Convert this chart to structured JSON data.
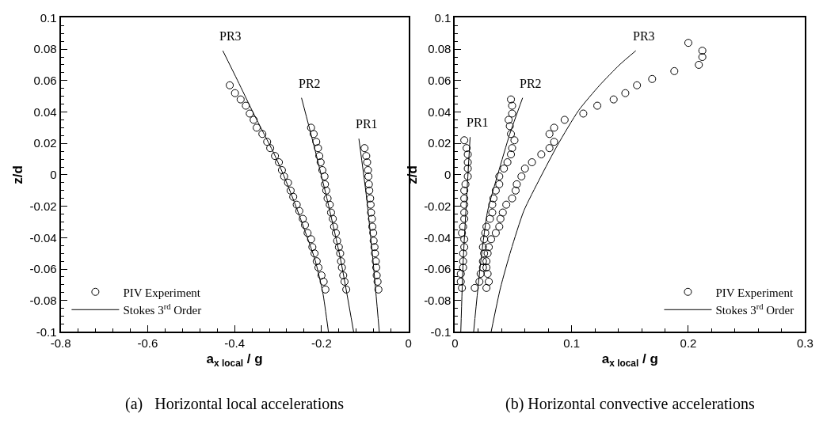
{
  "chart_data": [
    {
      "type": "scatter",
      "title": "(a)   Horizontal local accelerations",
      "xlabel": "a$_{x local}$ / g",
      "ylabel": "z/d",
      "xlim": [
        -0.8,
        0
      ],
      "xticks": [
        -0.8,
        -0.6,
        -0.4,
        -0.2,
        0
      ],
      "ylim": [
        -0.1,
        0.1
      ],
      "yticks": [
        -0.1,
        -0.08,
        -0.06,
        -0.04,
        -0.02,
        0,
        0.02,
        0.04,
        0.06,
        0.08,
        0.1
      ],
      "legend": "bottom left",
      "series": [
        {
          "name": "PIV Experiment",
          "color": "#000000",
          "marker": "circle",
          "x": [
            -0.411,
            -0.399,
            -0.386,
            -0.374,
            -0.365,
            -0.356,
            -0.349,
            -0.336,
            -0.325,
            -0.318,
            -0.307,
            -0.298,
            -0.291,
            -0.286,
            -0.277,
            -0.271,
            -0.265,
            -0.257,
            -0.251,
            -0.243,
            -0.238,
            -0.232,
            -0.224,
            -0.221,
            -0.216,
            -0.211,
            -0.207,
            -0.2,
            -0.195,
            -0.191
          ],
          "values": [
            0.057,
            0.052,
            0.048,
            0.044,
            0.039,
            0.035,
            0.03,
            0.026,
            0.021,
            0.017,
            0.012,
            0.008,
            0.003,
            -0.001,
            -0.005,
            -0.01,
            -0.014,
            -0.019,
            -0.023,
            -0.028,
            -0.032,
            -0.037,
            -0.041,
            -0.046,
            -0.05,
            -0.055,
            -0.059,
            -0.064,
            -0.068,
            -0.073
          ]
        },
        {
          "color": "#000000",
          "marker": "circle",
          "x": [
            -0.224,
            -0.218,
            -0.212,
            -0.208,
            -0.205,
            -0.202,
            -0.198,
            -0.193,
            -0.192,
            -0.189,
            -0.186,
            -0.181,
            -0.178,
            -0.174,
            -0.171,
            -0.167,
            -0.164,
            -0.16,
            -0.157,
            -0.155,
            -0.153,
            -0.15,
            -0.147,
            -0.143
          ],
          "values": [
            0.03,
            0.026,
            0.021,
            0.017,
            0.012,
            0.008,
            0.003,
            -0.001,
            -0.006,
            -0.01,
            -0.015,
            -0.019,
            -0.024,
            -0.028,
            -0.033,
            -0.037,
            -0.042,
            -0.046,
            -0.05,
            -0.055,
            -0.059,
            -0.064,
            -0.068,
            -0.073
          ]
        },
        {
          "color": "#000000",
          "marker": "circle",
          "x": [
            -0.101,
            -0.097,
            -0.095,
            -0.093,
            -0.092,
            -0.091,
            -0.09,
            -0.088,
            -0.087,
            -0.086,
            -0.084,
            -0.083,
            -0.081,
            -0.08,
            -0.078,
            -0.077,
            -0.075,
            -0.074,
            -0.073,
            -0.071,
            -0.069
          ],
          "values": [
            0.017,
            0.012,
            0.008,
            0.003,
            -0.001,
            -0.006,
            -0.01,
            -0.015,
            -0.019,
            -0.024,
            -0.028,
            -0.033,
            -0.037,
            -0.042,
            -0.046,
            -0.05,
            -0.055,
            -0.059,
            -0.064,
            -0.068,
            -0.073
          ]
        },
        {
          "type": "line",
          "name": "Stokes 3$^{rd}$ Order",
          "color": "#000000",
          "marker": "none",
          "line_style": "solid",
          "x": [
            -0.427,
            -0.393,
            -0.358,
            -0.334,
            -0.31,
            -0.286,
            -0.263,
            -0.239,
            -0.215,
            -0.197,
            -0.184
          ],
          "values": [
            0.079,
            0.06,
            0.04,
            0.027,
            0.014,
            -0.001,
            -0.017,
            -0.035,
            -0.054,
            -0.075,
            -0.1
          ]
        },
        {
          "type": "line",
          "color": "#000000",
          "marker": "none",
          "line_style": "solid",
          "x": [
            -0.246,
            -0.215,
            -0.185,
            -0.156,
            -0.126
          ],
          "values": [
            0.049,
            0.016,
            -0.018,
            -0.054,
            -0.1
          ]
        },
        {
          "type": "line",
          "color": "#000000",
          "marker": "none",
          "line_style": "solid",
          "x": [
            -0.114,
            -0.096,
            -0.081,
            -0.067
          ],
          "values": [
            0.023,
            -0.015,
            -0.056,
            -0.1
          ]
        }
      ],
      "annotations": [
        {
          "text": "PR3",
          "x": -0.427,
          "y": 0.079
        },
        {
          "text": "PR2",
          "x": -0.246,
          "y": 0.049
        },
        {
          "text": "PR1",
          "x": -0.114,
          "y": 0.023
        }
      ]
    },
    {
      "type": "scatter",
      "title": "(b) Horizontal convective accelerations",
      "xlabel": "a$_{x local}$ / g",
      "ylabel": "z/d",
      "xlim": [
        0,
        0.3
      ],
      "xticks": [
        0,
        0.1,
        0.2,
        0.3
      ],
      "ylim": [
        -0.1,
        0.1
      ],
      "yticks": [
        -0.1,
        -0.08,
        -0.06,
        -0.04,
        -0.02,
        0,
        0.02,
        0.04,
        0.06,
        0.08,
        0.1
      ],
      "legend": "bottom right",
      "series": [
        {
          "name": "PIV Experiment",
          "color": "#000000",
          "marker": "circle",
          "x": [
            0.008,
            0.01,
            0.011,
            0.011,
            0.011,
            0.011,
            0.009,
            0.008,
            0.008,
            0.008,
            0.008,
            0.008,
            0.007,
            0.006,
            0.008,
            0.008,
            0.007,
            0.007,
            0.007,
            0.005,
            0.005,
            0.006
          ],
          "values": [
            0.022,
            0.017,
            0.013,
            0.008,
            0.004,
            -0.001,
            -0.006,
            -0.01,
            -0.015,
            -0.019,
            -0.024,
            -0.028,
            -0.033,
            -0.037,
            -0.041,
            -0.046,
            -0.05,
            -0.055,
            -0.059,
            -0.063,
            -0.068,
            -0.072
          ]
        },
        {
          "color": "#000000",
          "marker": "circle",
          "x": [
            0.048,
            0.049,
            0.049,
            0.046,
            0.047,
            0.048,
            0.051,
            0.049,
            0.048,
            0.045,
            0.042,
            0.038,
            0.038,
            0.035,
            0.033,
            0.032,
            0.032,
            0.03,
            0.027,
            0.026,
            0.025,
            0.024,
            0.025,
            0.024,
            0.024,
            0.022,
            0.021,
            0.017
          ],
          "values": [
            0.048,
            0.044,
            0.039,
            0.035,
            0.031,
            0.026,
            0.022,
            0.017,
            0.013,
            0.008,
            0.004,
            -0.001,
            -0.006,
            -0.01,
            -0.015,
            -0.019,
            -0.024,
            -0.028,
            -0.033,
            -0.037,
            -0.041,
            -0.046,
            -0.05,
            -0.055,
            -0.059,
            -0.063,
            -0.068,
            -0.072
          ]
        },
        {
          "color": "#000000",
          "marker": "circle",
          "x": [
            0.2,
            0.212,
            0.212,
            0.209,
            0.188,
            0.169,
            0.156,
            0.146,
            0.136,
            0.122,
            0.11,
            0.094,
            0.085,
            0.081,
            0.085,
            0.081,
            0.074,
            0.066,
            0.06,
            0.057,
            0.053,
            0.052,
            0.049,
            0.044,
            0.041,
            0.039,
            0.038,
            0.035,
            0.031,
            0.029,
            0.028,
            0.027,
            0.027,
            0.028,
            0.029,
            0.027
          ],
          "values": [
            0.084,
            0.079,
            0.075,
            0.07,
            0.066,
            0.061,
            0.057,
            0.052,
            0.048,
            0.044,
            0.039,
            0.035,
            0.03,
            0.026,
            0.021,
            0.017,
            0.013,
            0.008,
            0.004,
            -0.001,
            -0.006,
            -0.01,
            -0.015,
            -0.019,
            -0.024,
            -0.028,
            -0.033,
            -0.037,
            -0.041,
            -0.046,
            -0.05,
            -0.055,
            -0.059,
            -0.063,
            -0.068,
            -0.072
          ]
        },
        {
          "type": "line",
          "name": "Stokes 3$^{rd}$ Order",
          "color": "#000000",
          "marker": "none",
          "line_style": "solid",
          "x": [
            0.031,
            0.039,
            0.048,
            0.059,
            0.073,
            0.088,
            0.106,
            0.124,
            0.141,
            0.155
          ],
          "values": [
            -0.1,
            -0.072,
            -0.048,
            -0.023,
            -0.002,
            0.019,
            0.041,
            0.057,
            0.07,
            0.079
          ]
        },
        {
          "type": "line",
          "color": "#000000",
          "marker": "none",
          "line_style": "solid",
          "x": [
            0.016,
            0.022,
            0.028,
            0.037,
            0.047,
            0.058
          ],
          "values": [
            -0.1,
            -0.056,
            -0.023,
            0.001,
            0.026,
            0.049
          ]
        },
        {
          "type": "line",
          "color": "#000000",
          "marker": "none",
          "line_style": "solid",
          "x": [
            0.005,
            0.007,
            0.01,
            0.013
          ],
          "values": [
            -0.1,
            -0.056,
            -0.015,
            0.024
          ]
        }
      ],
      "annotations": [
        {
          "text": "PR1",
          "x": 0.013,
          "y": 0.024
        },
        {
          "text": "PR2",
          "x": 0.058,
          "y": 0.049
        },
        {
          "text": "PR3",
          "x": 0.155,
          "y": 0.079
        }
      ]
    }
  ]
}
